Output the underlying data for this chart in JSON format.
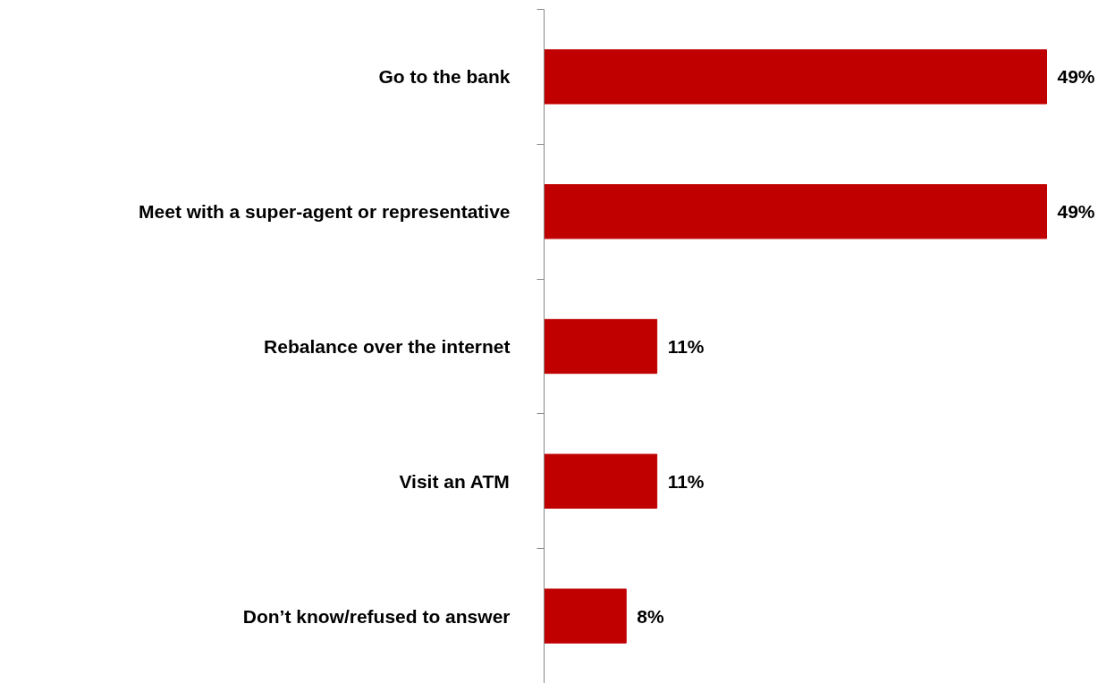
{
  "chart_data": {
    "type": "bar",
    "orientation": "horizontal",
    "categories": [
      "Go to the bank",
      "Meet with a super-agent or representative",
      "Rebalance over the internet",
      "Visit an ATM",
      "Don’t know/refused to answer"
    ],
    "values": [
      49,
      49,
      11,
      11,
      8
    ],
    "value_labels": [
      "49%",
      "49%",
      "11%",
      "11%",
      "8%"
    ],
    "color": "#c00000"
  }
}
